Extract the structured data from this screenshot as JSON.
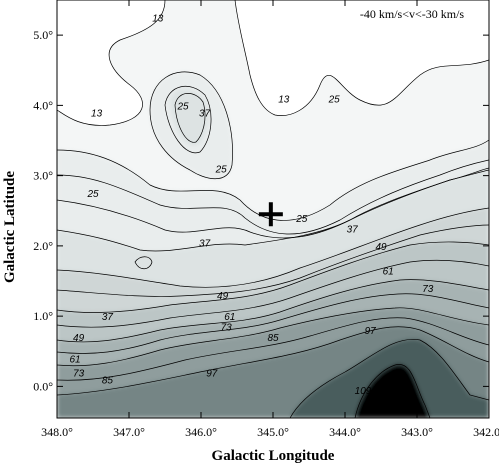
{
  "chart_data": {
    "type": "heatmap",
    "subtype": "contour",
    "title": "",
    "annotation": "-40 km/s<v<-30 km/s",
    "xlabel": "Galactic Longitude",
    "ylabel": "Galactic Latitude",
    "xlim": [
      348.0,
      342.0
    ],
    "ylim": [
      -0.45,
      5.5
    ],
    "x_ticks": [
      "348.0°",
      "347.0°",
      "346.0°",
      "345.0°",
      "344.0°",
      "343.0°",
      "342.0°"
    ],
    "y_ticks": [
      "0.0°",
      "1.0°",
      "2.0°",
      "3.0°",
      "4.0°",
      "5.0°"
    ],
    "x_tick_values": [
      348,
      347,
      346,
      345,
      344,
      343,
      342
    ],
    "y_tick_values": [
      0,
      1,
      2,
      3,
      4,
      5
    ],
    "contour_levels": [
      13,
      25,
      37,
      49,
      61,
      73,
      85,
      97,
      109
    ],
    "contour_labels": [
      {
        "text": "13",
        "l": 346.6,
        "b": 5.25
      },
      {
        "text": "13",
        "l": 347.45,
        "b": 3.9
      },
      {
        "text": "13",
        "l": 344.85,
        "b": 4.1
      },
      {
        "text": "25",
        "l": 346.25,
        "b": 4.0
      },
      {
        "text": "37",
        "l": 345.95,
        "b": 3.9
      },
      {
        "text": "25",
        "l": 345.72,
        "b": 3.1
      },
      {
        "text": "25",
        "l": 347.5,
        "b": 2.75
      },
      {
        "text": "25",
        "l": 344.15,
        "b": 4.1
      },
      {
        "text": "25",
        "l": 344.6,
        "b": 2.4
      },
      {
        "text": "37",
        "l": 345.95,
        "b": 2.05
      },
      {
        "text": "37",
        "l": 343.9,
        "b": 2.25
      },
      {
        "text": "49",
        "l": 343.5,
        "b": 2.0
      },
      {
        "text": "49",
        "l": 345.7,
        "b": 1.3
      },
      {
        "text": "37",
        "l": 347.3,
        "b": 1.0
      },
      {
        "text": "61",
        "l": 343.4,
        "b": 1.65
      },
      {
        "text": "61",
        "l": 345.6,
        "b": 1.0
      },
      {
        "text": "73",
        "l": 342.85,
        "b": 1.4
      },
      {
        "text": "73",
        "l": 345.65,
        "b": 0.85
      },
      {
        "text": "49",
        "l": 347.7,
        "b": 0.7
      },
      {
        "text": "85",
        "l": 345.0,
        "b": 0.7
      },
      {
        "text": "97",
        "l": 343.65,
        "b": 0.8
      },
      {
        "text": "61",
        "l": 347.75,
        "b": 0.4
      },
      {
        "text": "97",
        "l": 345.85,
        "b": 0.2
      },
      {
        "text": "73",
        "l": 347.7,
        "b": 0.2
      },
      {
        "text": "85",
        "l": 347.3,
        "b": 0.1
      },
      {
        "text": "109",
        "l": 343.75,
        "b": -0.05
      }
    ],
    "marker": {
      "symbol": "plus",
      "l": 345.03,
      "b": 2.45
    },
    "grid": false
  }
}
